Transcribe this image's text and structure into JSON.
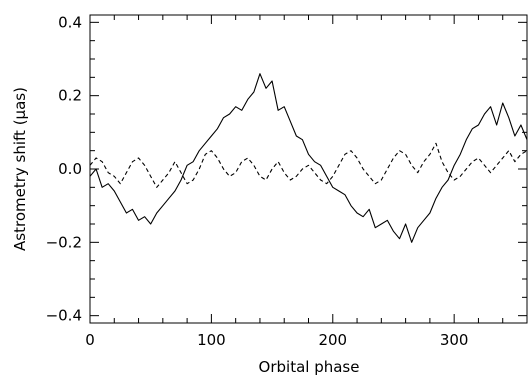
{
  "chart_data": {
    "type": "line",
    "xlabel": "Orbital phase",
    "ylabel": "Astrometry shift (μas)",
    "xlim": [
      0,
      360
    ],
    "ylim": [
      -0.42,
      0.42
    ],
    "xticks": [
      0,
      100,
      200,
      300
    ],
    "xtick_labels": [
      "0",
      "100",
      "200",
      "300"
    ],
    "yticks": [
      -0.4,
      -0.2,
      0.0,
      0.2,
      0.4
    ],
    "ytick_labels": [
      "−0.4",
      "−0.2",
      "0.0",
      "0.2",
      "0.4"
    ],
    "grid": false,
    "series": [
      {
        "style": "solid",
        "color": "#000000",
        "x": [
          0,
          5,
          10,
          15,
          20,
          25,
          30,
          35,
          40,
          45,
          50,
          55,
          60,
          65,
          70,
          75,
          80,
          85,
          90,
          95,
          100,
          105,
          110,
          115,
          120,
          125,
          130,
          135,
          140,
          145,
          150,
          155,
          160,
          165,
          170,
          175,
          180,
          185,
          190,
          195,
          200,
          205,
          210,
          215,
          220,
          225,
          230,
          235,
          240,
          245,
          250,
          255,
          260,
          265,
          270,
          275,
          280,
          285,
          290,
          295,
          300,
          305,
          310,
          315,
          320,
          325,
          330,
          335,
          340,
          345,
          350,
          355,
          360
        ],
        "y": [
          -0.02,
          0.0,
          -0.05,
          -0.04,
          -0.06,
          -0.09,
          -0.12,
          -0.11,
          -0.14,
          -0.13,
          -0.15,
          -0.12,
          -0.1,
          -0.08,
          -0.06,
          -0.03,
          0.01,
          0.02,
          0.05,
          0.07,
          0.09,
          0.11,
          0.14,
          0.15,
          0.17,
          0.16,
          0.19,
          0.21,
          0.26,
          0.22,
          0.24,
          0.16,
          0.17,
          0.13,
          0.09,
          0.08,
          0.04,
          0.02,
          0.01,
          -0.02,
          -0.05,
          -0.06,
          -0.07,
          -0.1,
          -0.12,
          -0.13,
          -0.11,
          -0.16,
          -0.15,
          -0.14,
          -0.17,
          -0.19,
          -0.15,
          -0.2,
          -0.16,
          -0.14,
          -0.12,
          -0.08,
          -0.05,
          -0.03,
          0.01,
          0.04,
          0.08,
          0.11,
          0.12,
          0.15,
          0.17,
          0.12,
          0.18,
          0.14,
          0.09,
          0.12,
          0.08
        ]
      },
      {
        "style": "dashed",
        "color": "#000000",
        "x": [
          0,
          5,
          10,
          15,
          20,
          25,
          30,
          35,
          40,
          45,
          50,
          55,
          60,
          65,
          70,
          75,
          80,
          85,
          90,
          95,
          100,
          105,
          110,
          115,
          120,
          125,
          130,
          135,
          140,
          145,
          150,
          155,
          160,
          165,
          170,
          175,
          180,
          185,
          190,
          195,
          200,
          205,
          210,
          215,
          220,
          225,
          230,
          235,
          240,
          245,
          250,
          255,
          260,
          265,
          270,
          275,
          280,
          285,
          290,
          295,
          300,
          305,
          310,
          315,
          320,
          325,
          330,
          335,
          340,
          345,
          350,
          355,
          360
        ],
        "y": [
          0.01,
          0.03,
          0.02,
          -0.01,
          -0.02,
          -0.04,
          -0.01,
          0.02,
          0.03,
          0.01,
          -0.02,
          -0.05,
          -0.03,
          -0.01,
          0.02,
          -0.01,
          -0.04,
          -0.03,
          0.0,
          0.04,
          0.05,
          0.03,
          0.0,
          -0.02,
          -0.01,
          0.02,
          0.03,
          0.01,
          -0.02,
          -0.03,
          0.0,
          0.02,
          -0.01,
          -0.03,
          -0.02,
          0.0,
          0.01,
          -0.01,
          -0.03,
          -0.04,
          -0.02,
          0.01,
          0.04,
          0.05,
          0.03,
          0.0,
          -0.02,
          -0.04,
          -0.03,
          0.0,
          0.03,
          0.05,
          0.04,
          0.01,
          -0.01,
          0.02,
          0.04,
          0.07,
          0.02,
          -0.01,
          -0.03,
          -0.02,
          0.0,
          0.02,
          0.03,
          0.01,
          -0.01,
          0.01,
          0.03,
          0.05,
          0.02,
          0.04,
          0.05
        ]
      }
    ]
  }
}
